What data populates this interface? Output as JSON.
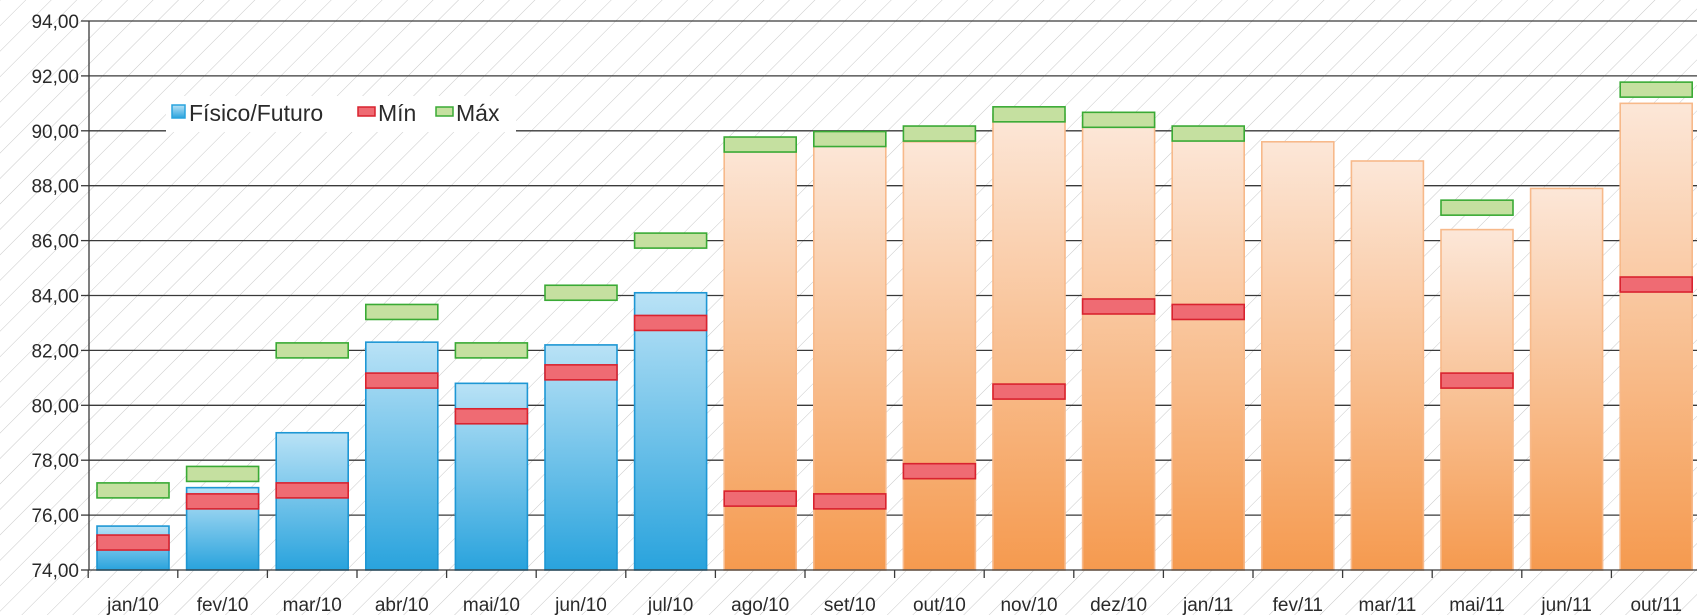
{
  "chart_data": {
    "type": "bar",
    "title": "",
    "xlabel": "",
    "ylabel": "",
    "ylim": [
      74,
      94
    ],
    "y_ticks": [
      "74,00",
      "76,00",
      "78,00",
      "80,00",
      "82,00",
      "84,00",
      "86,00",
      "88,00",
      "90,00",
      "92,00",
      "94,00"
    ],
    "grid": true,
    "legend_position": "top-left",
    "categories": [
      "jan/10",
      "fev/10",
      "mar/10",
      "abr/10",
      "mai/10",
      "jun/10",
      "jul/10",
      "ago/10",
      "set/10",
      "out/10",
      "nov/10",
      "dez/10",
      "jan/11",
      "fev/11",
      "mar/11",
      "mai/11",
      "jun/11",
      "out/11"
    ],
    "series": [
      {
        "name": "Físico/Futuro",
        "values": [
          75.6,
          77.0,
          79.0,
          82.3,
          80.8,
          82.2,
          84.1,
          89.6,
          89.6,
          89.6,
          90.6,
          90.3,
          89.9,
          89.6,
          88.9,
          86.4,
          87.9,
          91.0
        ],
        "color_historical": "#29a3dd",
        "color_future": "#f5a05a"
      },
      {
        "name": "Mín",
        "values": [
          75.0,
          76.5,
          76.9,
          80.9,
          79.6,
          81.2,
          83.0,
          76.6,
          76.5,
          77.6,
          80.5,
          83.6,
          83.4,
          null,
          null,
          80.9,
          null,
          84.4
        ],
        "color": "#e8505b"
      },
      {
        "name": "Máx",
        "values": [
          76.9,
          77.5,
          82.0,
          83.4,
          82.0,
          84.1,
          86.0,
          89.5,
          89.7,
          89.9,
          90.6,
          90.4,
          89.9,
          null,
          null,
          87.2,
          null,
          91.5
        ],
        "color": "#8dc63f"
      }
    ],
    "historical_count": 7
  }
}
